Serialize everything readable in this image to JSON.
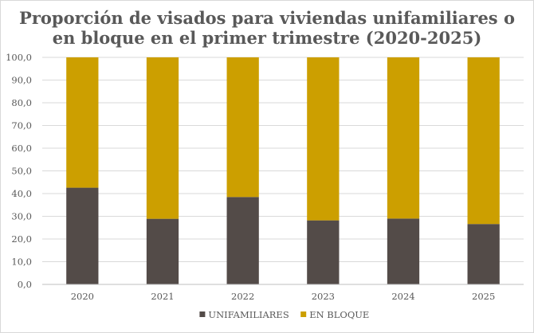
{
  "chart_data": {
    "type": "bar",
    "stacked": true,
    "title": "Proporción de visados para viviendas unifamiliares o en bloque en el primer trimestre (2020-2025)",
    "title_lines": [
      "Proporción de visados para viviendas unifamiliares o",
      "en bloque en el primer trimestre (2020-2025)"
    ],
    "categories": [
      "2020",
      "2021",
      "2022",
      "2023",
      "2024",
      "2025"
    ],
    "series": [
      {
        "name": "UNIFAMILIARES",
        "color": "#534b48",
        "values": [
          42.6,
          28.9,
          38.5,
          28.2,
          29.0,
          26.6
        ]
      },
      {
        "name": "EN BLOQUE",
        "color": "#cc9f00",
        "values": [
          57.4,
          71.1,
          61.5,
          71.8,
          71.0,
          73.4
        ]
      }
    ],
    "y_ticks": [
      "0,0",
      "10,0",
      "20,0",
      "30,0",
      "40,0",
      "50,0",
      "60,0",
      "70,0",
      "80,0",
      "90,0",
      "100,0"
    ],
    "ylim": [
      0,
      100
    ],
    "y_step": 10,
    "xlabel": "",
    "ylabel": "",
    "grid": true,
    "legend_position": "bottom"
  }
}
